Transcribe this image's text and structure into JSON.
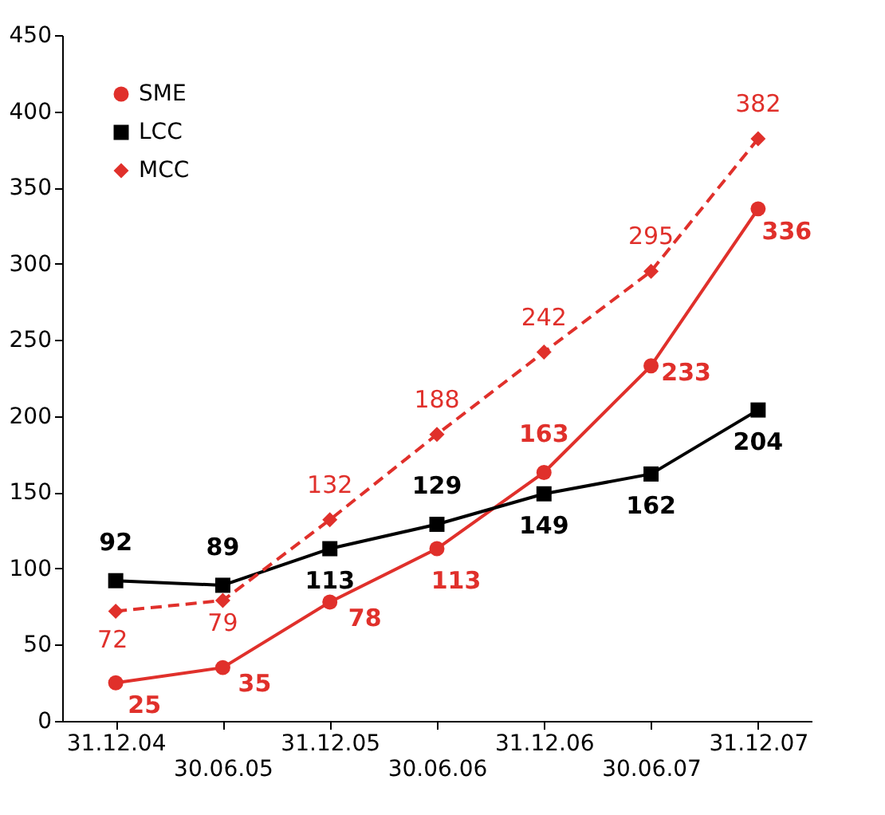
{
  "chart_data": {
    "type": "line",
    "categories": [
      "31.12.04",
      "30.06.05",
      "31.12.05",
      "30.06.06",
      "31.12.06",
      "30.06.07",
      "31.12.07"
    ],
    "series": [
      {
        "name": "SME",
        "color": "#e0302b",
        "marker": "circle",
        "line_style": "solid",
        "values": [
          25,
          35,
          78,
          113,
          163,
          233,
          336
        ]
      },
      {
        "name": "LCC",
        "color": "#000000",
        "marker": "square",
        "line_style": "solid",
        "values": [
          92,
          89,
          113,
          129,
          149,
          162,
          204
        ]
      },
      {
        "name": "MCC",
        "color": "#e0302b",
        "marker": "diamond",
        "line_style": "dashed",
        "values": [
          72,
          79,
          132,
          188,
          242,
          295,
          382
        ]
      }
    ],
    "ylim": [
      0,
      450
    ],
    "yticks": [
      0,
      50,
      100,
      150,
      200,
      250,
      300,
      350,
      400,
      450
    ],
    "grid": false,
    "legend": "top left",
    "data_labels": true
  }
}
